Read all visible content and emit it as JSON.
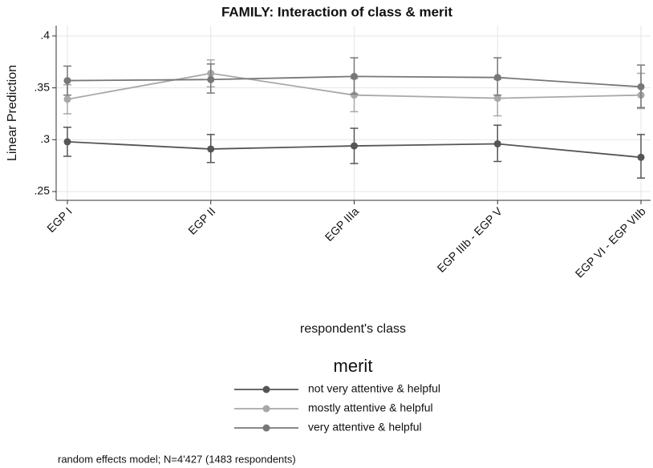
{
  "chart_data": {
    "type": "line",
    "title": "FAMILY: Interaction of class & merit",
    "y_label": "Linear Prediction",
    "x_label": "respondent's class",
    "legend_title": "merit",
    "note": "random effects model; N=4'427 (1483 respondents)",
    "categories": [
      "EGP I",
      "EGP II",
      "EGP IIIa",
      "EGP IIIb - EGP V",
      "EGP VI - EGP VIIb"
    ],
    "ylim": [
      0.2415,
      0.41
    ],
    "yticks": [
      {
        "value": 0.25,
        "label": ".25"
      },
      {
        "value": 0.3,
        "label": ".3"
      },
      {
        "value": 0.35,
        "label": ".35"
      },
      {
        "value": 0.4,
        "label": ".4"
      }
    ],
    "grid": true,
    "series": [
      {
        "name": "not very attentive & helpful",
        "color": "#555555",
        "values": [
          0.298,
          0.291,
          0.294,
          0.296,
          0.283
        ],
        "lower": [
          0.284,
          0.278,
          0.277,
          0.279,
          0.263
        ],
        "upper": [
          0.312,
          0.305,
          0.311,
          0.314,
          0.305
        ]
      },
      {
        "name": "mostly attentive & helpful",
        "color": "#a8a8a8",
        "values": [
          0.339,
          0.364,
          0.343,
          0.34,
          0.343
        ],
        "lower": [
          0.325,
          0.351,
          0.327,
          0.323,
          0.33
        ],
        "upper": [
          0.353,
          0.377,
          0.359,
          0.358,
          0.364
        ]
      },
      {
        "name": "very attentive & helpful",
        "color": "#777777",
        "values": [
          0.357,
          0.358,
          0.361,
          0.36,
          0.351
        ],
        "lower": [
          0.343,
          0.345,
          0.344,
          0.343,
          0.331
        ],
        "upper": [
          0.371,
          0.373,
          0.379,
          0.379,
          0.372
        ]
      }
    ]
  }
}
